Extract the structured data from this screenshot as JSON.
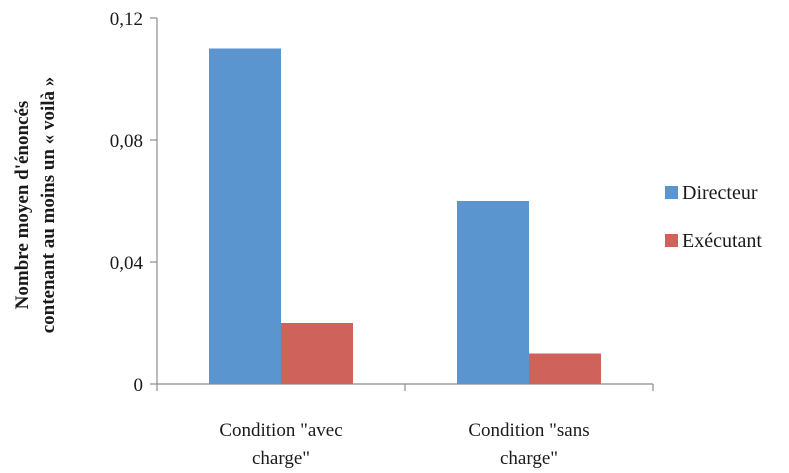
{
  "chart_data": {
    "type": "bar",
    "categories": [
      [
        "Condition \"avec",
        "charge\""
      ],
      [
        "Condition \"sans",
        "charge\""
      ]
    ],
    "series": [
      {
        "name": "Directeur",
        "values": [
          0.11,
          0.06
        ],
        "color": "#5b95cf"
      },
      {
        "name": "Exécutant",
        "values": [
          0.02,
          0.01
        ],
        "color": "#d0625c"
      }
    ],
    "ylim": [
      0,
      0.12
    ],
    "yticks": [
      "0",
      "0,04",
      "0,08",
      "0,12"
    ],
    "ytick_values": [
      0,
      0.04,
      0.08,
      0.12
    ],
    "ylabel_lines": [
      "Nombre moyen d'énoncés",
      "contenant au moins un « voilà »"
    ],
    "legend_position": "right",
    "grid": false
  }
}
